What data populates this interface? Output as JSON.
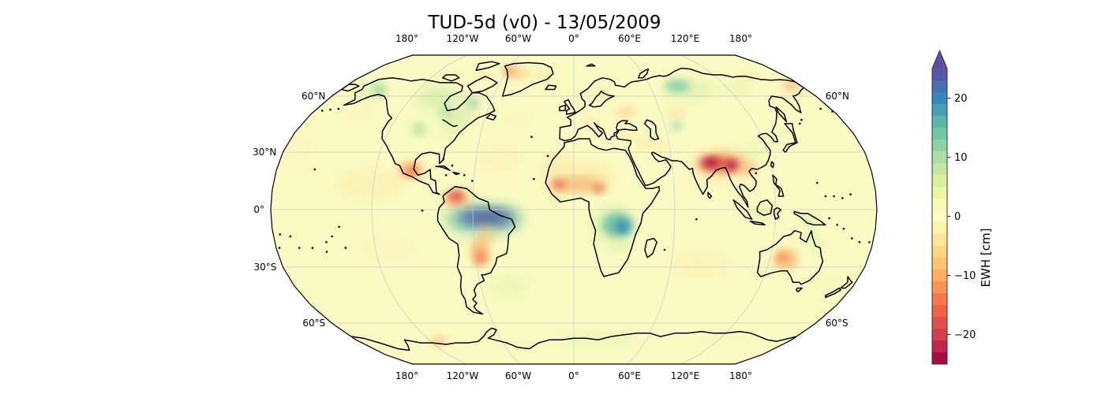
{
  "title": "TUD-5d (v0) - 13/05/2009",
  "map": {
    "projection": "Robinson",
    "base_color": "#fafbc3",
    "coastline_color": "#000000",
    "gridline_color": "#c9c9c9",
    "boundary_color": "#000000",
    "lon_ticks": [
      {
        "label": "180°",
        "deg": -180
      },
      {
        "label": "120°W",
        "deg": -120
      },
      {
        "label": "60°W",
        "deg": -60
      },
      {
        "label": "0°",
        "deg": 0
      },
      {
        "label": "60°E",
        "deg": 60
      },
      {
        "label": "120°E",
        "deg": 120
      },
      {
        "label": "180°",
        "deg": 180
      }
    ],
    "lat_ticks_left": [
      {
        "label": "60°N",
        "deg": 60
      },
      {
        "label": "30°N",
        "deg": 30
      },
      {
        "label": "0°",
        "deg": 0
      },
      {
        "label": "30°S",
        "deg": -30
      },
      {
        "label": "60°S",
        "deg": -60
      }
    ],
    "lat_ticks_right": [
      {
        "label": "60°N",
        "deg": 60
      },
      {
        "label": "60°S",
        "deg": -60
      }
    ],
    "grid_lon_interval_deg": 60,
    "grid_lat_interval_deg": 30
  },
  "colorbar": {
    "label": "EWH [cm]",
    "vmin": -25,
    "vmax": 25,
    "extend": "max",
    "colormap": "Spectral_r",
    "arrow_color": "#5e4fa2",
    "ticks": [
      {
        "value": 20,
        "label": "20"
      },
      {
        "value": 10,
        "label": "10"
      },
      {
        "value": 0,
        "label": "0"
      },
      {
        "value": -10,
        "label": "−10"
      },
      {
        "value": -20,
        "label": "−20"
      }
    ],
    "segment_colors_top_to_bottom": [
      "#555aa7",
      "#4471b2",
      "#3288bd",
      "#479fb3",
      "#5cb6aa",
      "#74c7a5",
      "#8fd2a4",
      "#abdda4",
      "#c3e79f",
      "#daf09a",
      "#ebf7a0",
      "#f5fbaf",
      "#ffffbf",
      "#fff3aa",
      "#fee695",
      "#fed683",
      "#fdc272",
      "#fdae61",
      "#f99455",
      "#f67a49",
      "#ee6445",
      "#e1514a",
      "#d53e4f",
      "#bf264a",
      "#a90d45"
    ]
  },
  "chart_data": {
    "type": "heatmap",
    "projection": "Robinson",
    "title": "TUD-5d (v0) - 13/05/2009",
    "dataset": "TUD-5d",
    "version": "v0",
    "date": "13/05/2009",
    "value_label": "EWH [cm]",
    "value_range": [
      -25,
      25
    ],
    "colormap": "Spectral_r",
    "colormap_anchors": [
      "#9e0142",
      "#d53e4f",
      "#f46d43",
      "#fdae61",
      "#fee08b",
      "#ffffbf",
      "#e6f598",
      "#abdda4",
      "#66c2a5",
      "#3288bd",
      "#5e4fa2"
    ],
    "anomalies": [
      {
        "name": "east-pacific-warm-wash",
        "lon": -122,
        "lat": 13,
        "rx_deg": 22,
        "ry_deg": 9,
        "ewh_cm": -3,
        "color": "#fbe3a6",
        "opacity": 0.4
      },
      {
        "name": "south-pacific-warm-wash",
        "lon": -112,
        "lat": -20,
        "rx_deg": 18,
        "ry_deg": 8,
        "ewh_cm": -2,
        "color": "#fdedb4",
        "opacity": 0.35
      },
      {
        "name": "north-atlantic-warm-wash",
        "lon": -45,
        "lat": 27,
        "rx_deg": 14,
        "ry_deg": 7,
        "ewh_cm": -3,
        "color": "#fbe3a6",
        "opacity": 0.35
      },
      {
        "name": "mid-atlantic-warm-wash",
        "lon": -38,
        "lat": 48,
        "rx_deg": 10,
        "ry_deg": 5,
        "ewh_cm": -2,
        "color": "#fdeab0",
        "opacity": 0.3
      },
      {
        "name": "south-indian-warm-wash",
        "lon": 78,
        "lat": -28,
        "rx_deg": 18,
        "ry_deg": 8,
        "ewh_cm": -3,
        "color": "#fbe3a6",
        "opacity": 0.35
      },
      {
        "name": "north-pacific-warm-wash",
        "lon": -175,
        "lat": 32,
        "rx_deg": 16,
        "ry_deg": 8,
        "ewh_cm": -2,
        "color": "#fdedb4",
        "opacity": 0.3
      },
      {
        "name": "tasman-green-wash",
        "lon": 162,
        "lat": -38,
        "rx_deg": 12,
        "ry_deg": 6,
        "ewh_cm": 2,
        "color": "#eef6b0",
        "opacity": 0.35
      },
      {
        "name": "gulf-alaska-warm-wash",
        "lon": -150,
        "lat": 52,
        "rx_deg": 12,
        "ry_deg": 5,
        "ewh_cm": -2.5,
        "color": "#fceab0",
        "opacity": 0.35
      },
      {
        "name": "canada-west-green",
        "lon": -100,
        "lat": 59,
        "rx_deg": 17,
        "ry_deg": 7,
        "ewh_cm": 8,
        "color": "#c9e9a0",
        "opacity": 0.6
      },
      {
        "name": "canada-east-green",
        "lon": -80,
        "lat": 48,
        "rx_deg": 12,
        "ry_deg": 6,
        "ewh_cm": 7,
        "color": "#cfeba1",
        "opacity": 0.55
      },
      {
        "name": "quebec-teal",
        "lon": -73,
        "lat": 56,
        "rx_deg": 5,
        "ry_deg": 3.5,
        "ewh_cm": 11,
        "color": "#8ccfa6",
        "opacity": 0.7
      },
      {
        "name": "ontario-teal",
        "lon": -89,
        "lat": 52,
        "rx_deg": 4,
        "ry_deg": 3,
        "ewh_cm": 10,
        "color": "#96d4a6",
        "opacity": 0.65
      },
      {
        "name": "alaska-green-halo",
        "lon": -150,
        "lat": 63,
        "rx_deg": 9,
        "ry_deg": 5,
        "ewh_cm": 6,
        "color": "#cdeba0",
        "opacity": 0.5
      },
      {
        "name": "alaska-teal",
        "lon": -151,
        "lat": 64,
        "rx_deg": 5,
        "ry_deg": 3,
        "ewh_cm": 11,
        "color": "#8ccfa6",
        "opacity": 0.7
      },
      {
        "name": "us-plains-halo",
        "lon": -100,
        "lat": 42,
        "rx_deg": 7,
        "ry_deg": 5,
        "ewh_cm": 5,
        "color": "#d8efa3",
        "opacity": 0.5
      },
      {
        "name": "us-plains-teal",
        "lon": -101,
        "lat": 42,
        "rx_deg": 3.5,
        "ry_deg": 3,
        "ewh_cm": 10,
        "color": "#96d4a6",
        "opacity": 0.6
      },
      {
        "name": "us-east-green",
        "lon": -79,
        "lat": 41,
        "rx_deg": 8,
        "ry_deg": 5,
        "ewh_cm": 5,
        "color": "#dff2a8",
        "opacity": 0.4
      },
      {
        "name": "amazon-outer-green",
        "lon": -54,
        "lat": -5,
        "rx_deg": 25,
        "ry_deg": 10,
        "ewh_cm": 10,
        "color": "#a5d9a5",
        "opacity": 0.5
      },
      {
        "name": "amazon-blue-ring",
        "lon": -53,
        "lat": -4.5,
        "rx_deg": 20,
        "ry_deg": 6,
        "ewh_cm": 18,
        "color": "#4ba5b2",
        "opacity": 0.75
      },
      {
        "name": "amazon-purple-core",
        "lon": -52,
        "lat": -4,
        "rx_deg": 15,
        "ry_deg": 3.4,
        "ewh_cm": 25,
        "color": "#5751a0",
        "opacity": 1.0
      },
      {
        "name": "south-atlantic-green",
        "lon": -42,
        "lat": -40,
        "rx_deg": 15,
        "ry_deg": 7,
        "ewh_cm": 4,
        "color": "#e2f3ab",
        "opacity": 0.5
      },
      {
        "name": "gulf-guinea-green",
        "lon": -8,
        "lat": 6,
        "rx_deg": 8,
        "ry_deg": 2.5,
        "ewh_cm": 5,
        "color": "#dcf0a2",
        "opacity": 0.5
      },
      {
        "name": "congo-green-halo",
        "lon": 24,
        "lat": -8,
        "rx_deg": 13,
        "ry_deg": 10,
        "ewh_cm": 7,
        "color": "#c8e89d",
        "opacity": 0.55
      },
      {
        "name": "congo-teal",
        "lon": 26,
        "lat": -8,
        "rx_deg": 9,
        "ry_deg": 7,
        "ewh_cm": 14,
        "color": "#62bba7",
        "opacity": 0.8
      },
      {
        "name": "congo-blue-core",
        "lon": 29,
        "lat": -9,
        "rx_deg": 4.5,
        "ry_deg": 4,
        "ewh_cm": 20,
        "color": "#3389bc",
        "opacity": 0.85
      },
      {
        "name": "zambia-green",
        "lon": 27,
        "lat": -19,
        "rx_deg": 7,
        "ry_deg": 5,
        "ewh_cm": 4,
        "color": "#dcf0a2",
        "opacity": 0.45
      },
      {
        "name": "siberia-green-halo",
        "lon": 90,
        "lat": 64,
        "rx_deg": 20,
        "ry_deg": 6,
        "ewh_cm": 7,
        "color": "#cdeba0",
        "opacity": 0.5
      },
      {
        "name": "siberia-teal",
        "lon": 82,
        "lat": 66,
        "rx_deg": 10,
        "ry_deg": 3.5,
        "ewh_cm": 13,
        "color": "#74c5a7",
        "opacity": 0.75
      },
      {
        "name": "east-siberia-green",
        "lon": 125,
        "lat": 64,
        "rx_deg": 12,
        "ry_deg": 4,
        "ewh_cm": 5,
        "color": "#d8efa3",
        "opacity": 0.4
      },
      {
        "name": "central-asia-teal",
        "lon": 68,
        "lat": 44,
        "rx_deg": 4,
        "ry_deg": 3,
        "ewh_cm": 10,
        "color": "#8ccfa6",
        "opacity": 0.6
      },
      {
        "name": "scandinavia-green",
        "lon": 20,
        "lat": 63,
        "rx_deg": 7,
        "ry_deg": 3,
        "ewh_cm": 4,
        "color": "#dcf0a2",
        "opacity": 0.4
      },
      {
        "name": "china-green",
        "lon": 112,
        "lat": 30,
        "rx_deg": 9,
        "ry_deg": 5,
        "ewh_cm": 4,
        "color": "#dff2a8",
        "opacity": 0.4
      },
      {
        "name": "japan-green",
        "lon": 130,
        "lat": 39,
        "rx_deg": 6,
        "ry_deg": 4,
        "ewh_cm": 4,
        "color": "#dff2a8",
        "opacity": 0.35
      },
      {
        "name": "indonesia-green",
        "lon": 113,
        "lat": -1,
        "rx_deg": 9,
        "ry_deg": 4,
        "ewh_cm": 4,
        "color": "#dcf0a2",
        "opacity": 0.45
      },
      {
        "name": "new-guinea-green",
        "lon": 141,
        "lat": -5,
        "rx_deg": 6,
        "ry_deg": 3,
        "ewh_cm": 6,
        "color": "#cdeba0",
        "opacity": 0.5
      },
      {
        "name": "cape-york-green",
        "lon": 142,
        "lat": -13,
        "rx_deg": 3.5,
        "ry_deg": 3,
        "ewh_cm": 6,
        "color": "#cdeba0",
        "opacity": 0.5
      },
      {
        "name": "queensland-green",
        "lon": 147,
        "lat": -19,
        "rx_deg": 4,
        "ry_deg": 5,
        "ewh_cm": 5,
        "color": "#d8efa3",
        "opacity": 0.5
      },
      {
        "name": "sw-australia-green",
        "lon": 117,
        "lat": -33,
        "rx_deg": 5,
        "ry_deg": 3,
        "ewh_cm": 4,
        "color": "#dcf0a2",
        "opacity": 0.4
      },
      {
        "name": "antarctica-green-east",
        "lon": 20,
        "lat": -69,
        "rx_deg": 35,
        "ry_deg": 3.5,
        "ewh_cm": 5,
        "color": "#d8efa3",
        "opacity": 0.5
      },
      {
        "name": "antarctica-green-far-east",
        "lon": 120,
        "lat": -67,
        "rx_deg": 25,
        "ry_deg": 3,
        "ewh_cm": 4,
        "color": "#e2f3ab",
        "opacity": 0.4
      },
      {
        "name": "antarctica-green-west",
        "lon": -45,
        "lat": -73,
        "rx_deg": 15,
        "ry_deg": 3,
        "ewh_cm": 4,
        "color": "#e2f3ab",
        "opacity": 0.35
      },
      {
        "name": "sahara-warm-halo",
        "lon": 2,
        "lat": 19,
        "rx_deg": 22,
        "ry_deg": 6,
        "ewh_cm": -4,
        "color": "#fbd993",
        "opacity": 0.45
      },
      {
        "name": "west-africa-warm",
        "lon": -10,
        "lat": 26,
        "rx_deg": 10,
        "ry_deg": 5,
        "ewh_cm": -3,
        "color": "#fce3a4",
        "opacity": 0.4
      },
      {
        "name": "sahel-orange-band",
        "lon": 2,
        "lat": 13,
        "rx_deg": 17,
        "ry_deg": 2.8,
        "ewh_cm": -11,
        "color": "#f4934e",
        "opacity": 0.85
      },
      {
        "name": "sahel-red-core-west",
        "lon": -9,
        "lat": 13,
        "rx_deg": 4,
        "ry_deg": 2.2,
        "ewh_cm": -15,
        "color": "#e85948",
        "opacity": 0.9
      },
      {
        "name": "sahel-red-core-east",
        "lon": 15,
        "lat": 11,
        "rx_deg": 4,
        "ry_deg": 2.2,
        "ewh_cm": -14,
        "color": "#ec6a44",
        "opacity": 0.85
      },
      {
        "name": "venezuela-orange-halo",
        "lon": -70,
        "lat": 6,
        "rx_deg": 8,
        "ry_deg": 5,
        "ewh_cm": -8,
        "color": "#f9a55e",
        "opacity": 0.6
      },
      {
        "name": "venezuela-red-core",
        "lon": -70,
        "lat": 7,
        "rx_deg": 4.5,
        "ry_deg": 3,
        "ewh_cm": -17,
        "color": "#d84a4c",
        "opacity": 0.9
      },
      {
        "name": "central-brazil-warm",
        "lon": -52,
        "lat": -13,
        "rx_deg": 6,
        "ry_deg": 5,
        "ewh_cm": -6,
        "color": "#fbc47e",
        "opacity": 0.5
      },
      {
        "name": "parana-orange-halo",
        "lon": -57,
        "lat": -22,
        "rx_deg": 6,
        "ry_deg": 8,
        "ewh_cm": -9,
        "color": "#f9a55e",
        "opacity": 0.6
      },
      {
        "name": "parana-orange-core",
        "lon": -57,
        "lat": -25,
        "rx_deg": 3.5,
        "ry_deg": 4,
        "ewh_cm": -13,
        "color": "#f07a49",
        "opacity": 0.8
      },
      {
        "name": "mexico-orange-halo",
        "lon": -99,
        "lat": 21,
        "rx_deg": 8,
        "ry_deg": 5,
        "ewh_cm": -8,
        "color": "#f9ab63",
        "opacity": 0.6
      },
      {
        "name": "mexico-orange-core",
        "lon": -98,
        "lat": 20,
        "rx_deg": 4,
        "ry_deg": 2.8,
        "ewh_cm": -13,
        "color": "#ed6f46",
        "opacity": 0.85
      },
      {
        "name": "india-warm-outer",
        "lon": 90,
        "lat": 24,
        "rx_deg": 17,
        "ry_deg": 6.5,
        "ewh_cm": -9,
        "color": "#f9a55e",
        "opacity": 0.6
      },
      {
        "name": "india-orange-mid",
        "lon": 89,
        "lat": 24,
        "rx_deg": 12,
        "ry_deg": 4.5,
        "ewh_cm": -14,
        "color": "#ee6a45",
        "opacity": 0.75
      },
      {
        "name": "north-india-crimson-core",
        "lon": 84,
        "lat": 24.5,
        "rx_deg": 5.5,
        "ry_deg": 2.8,
        "ewh_cm": -23,
        "color": "#ab1045",
        "opacity": 0.95
      },
      {
        "name": "myanmar-crimson-core",
        "lon": 96,
        "lat": 23,
        "rx_deg": 4,
        "ry_deg": 2.6,
        "ewh_cm": -23,
        "color": "#b01346",
        "opacity": 0.95
      },
      {
        "name": "se-asia-warm",
        "lon": 106,
        "lat": 21,
        "rx_deg": 6,
        "ry_deg": 3,
        "ewh_cm": -8,
        "color": "#f9a55e",
        "opacity": 0.55
      },
      {
        "name": "ukraine-warm",
        "lon": 36,
        "lat": 51,
        "rx_deg": 7,
        "ry_deg": 3.5,
        "ewh_cm": -6,
        "color": "#fbc47e",
        "opacity": 0.5
      },
      {
        "name": "kazakhstan-warm",
        "lon": 70,
        "lat": 51,
        "rx_deg": 7,
        "ry_deg": 3,
        "ewh_cm": -5,
        "color": "#fcd28a",
        "opacity": 0.45
      },
      {
        "name": "iran-warm",
        "lon": 48,
        "lat": 34,
        "rx_deg": 11,
        "ry_deg": 5,
        "ewh_cm": -3.5,
        "color": "#fce0a0",
        "opacity": 0.4
      },
      {
        "name": "central-europe-warm",
        "lon": 12,
        "lat": 47,
        "rx_deg": 8,
        "ry_deg": 3,
        "ewh_cm": -3,
        "color": "#fce3a8",
        "opacity": 0.35
      },
      {
        "name": "greenland-orange-halo",
        "lon": -50,
        "lat": 74,
        "rx_deg": 12,
        "ry_deg": 4,
        "ewh_cm": -6,
        "color": "#fbc47e",
        "opacity": 0.5
      },
      {
        "name": "greenland-orange-core",
        "lon": -58,
        "lat": 76,
        "rx_deg": 5,
        "ry_deg": 2.2,
        "ewh_cm": -12,
        "color": "#f0824a",
        "opacity": 0.85
      },
      {
        "name": "ne-greenland-warm",
        "lon": -25,
        "lat": 72,
        "rx_deg": 8,
        "ry_deg": 3,
        "ewh_cm": -4.5,
        "color": "#fccf8c",
        "opacity": 0.4
      },
      {
        "name": "baffin-warm",
        "lon": -78,
        "lat": 73,
        "rx_deg": 6,
        "ry_deg": 2.5,
        "ewh_cm": -5,
        "color": "#fbc982",
        "opacity": 0.45
      },
      {
        "name": "chukotka-warm",
        "lon": 172,
        "lat": 66,
        "rx_deg": 7,
        "ry_deg": 3,
        "ewh_cm": -9,
        "color": "#f9a55e",
        "opacity": 0.6
      },
      {
        "name": "east-siberia-coast-warm",
        "lon": 145,
        "lat": 71,
        "rx_deg": 10,
        "ry_deg": 2.5,
        "ewh_cm": -4,
        "color": "#fcd28a",
        "opacity": 0.4
      },
      {
        "name": "australia-orange-halo",
        "lon": 130,
        "lat": -26,
        "rx_deg": 8,
        "ry_deg": 6,
        "ewh_cm": -8,
        "color": "#f9ab63",
        "opacity": 0.6
      },
      {
        "name": "australia-orange-core",
        "lon": 128,
        "lat": -25,
        "rx_deg": 3.5,
        "ry_deg": 3,
        "ewh_cm": -11,
        "color": "#f4854c",
        "opacity": 0.8
      },
      {
        "name": "west-antarctica-warm",
        "lon": -113,
        "lat": -71,
        "rx_deg": 7,
        "ry_deg": 2.5,
        "ewh_cm": -8,
        "color": "#f9a55e",
        "opacity": 0.6
      },
      {
        "name": "turkey-warm",
        "lon": 33,
        "lat": 39,
        "rx_deg": 5,
        "ry_deg": 2.5,
        "ewh_cm": -4,
        "color": "#fcd994",
        "opacity": 0.4
      }
    ]
  }
}
